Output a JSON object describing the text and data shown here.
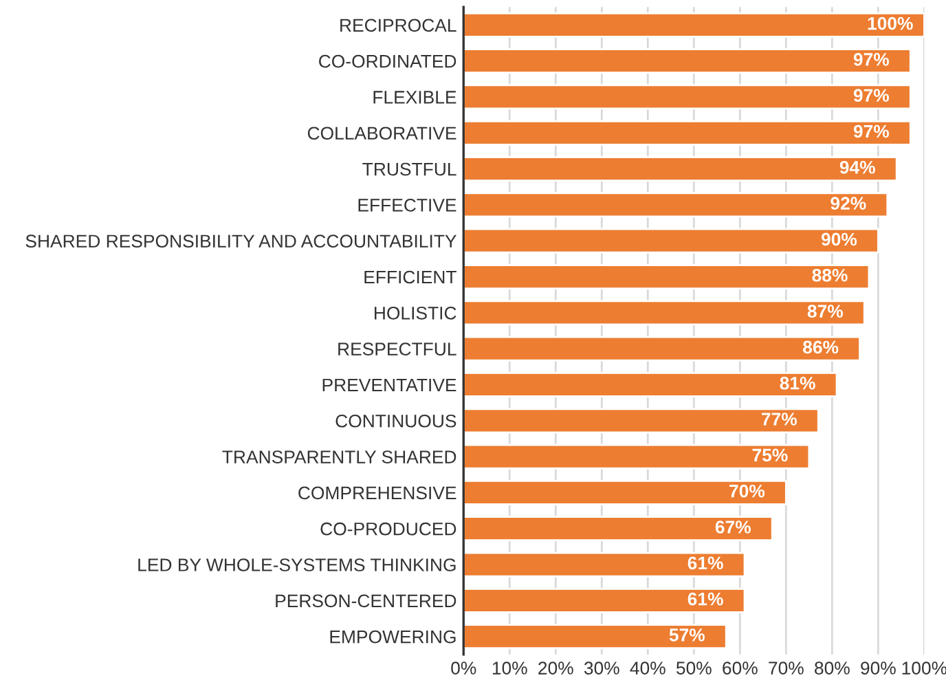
{
  "chart_data": {
    "type": "bar",
    "orientation": "horizontal",
    "categories": [
      "RECIPROCAL",
      "CO-ORDINATED",
      "FLEXIBLE",
      "COLLABORATIVE",
      "TRUSTFUL",
      "EFFECTIVE",
      "SHARED RESPONSIBILITY AND ACCOUNTABILITY",
      "EFFICIENT",
      "HOLISTIC",
      "RESPECTFUL",
      "PREVENTATIVE",
      "CONTINUOUS",
      "TRANSPARENTLY SHARED",
      "COMPREHENSIVE",
      "CO-PRODUCED",
      "LED BY WHOLE-SYSTEMS THINKING",
      "PERSON-CENTERED",
      "EMPOWERING"
    ],
    "values": [
      100,
      97,
      97,
      97,
      94,
      92,
      90,
      88,
      87,
      86,
      81,
      77,
      75,
      70,
      67,
      61,
      61,
      57
    ],
    "value_labels": [
      "100%",
      "97%",
      "97%",
      "97%",
      "94%",
      "92%",
      "90%",
      "88%",
      "87%",
      "86%",
      "81%",
      "77%",
      "75%",
      "70%",
      "67%",
      "61%",
      "61%",
      "57%"
    ],
    "color": "#ed7d31",
    "xlim": [
      0,
      100
    ],
    "xticks": [
      {
        "value": 0,
        "label": "0%"
      },
      {
        "value": 10,
        "label": "10%"
      },
      {
        "value": 20,
        "label": "20%"
      },
      {
        "value": 30,
        "label": "30%"
      },
      {
        "value": 40,
        "label": "40%"
      },
      {
        "value": 50,
        "label": "50%"
      },
      {
        "value": 60,
        "label": "60%"
      },
      {
        "value": 70,
        "label": "70%"
      },
      {
        "value": 80,
        "label": "80%"
      },
      {
        "value": 90,
        "label": "90%"
      },
      {
        "value": 100,
        "label": "100%"
      }
    ],
    "grid": "x"
  }
}
